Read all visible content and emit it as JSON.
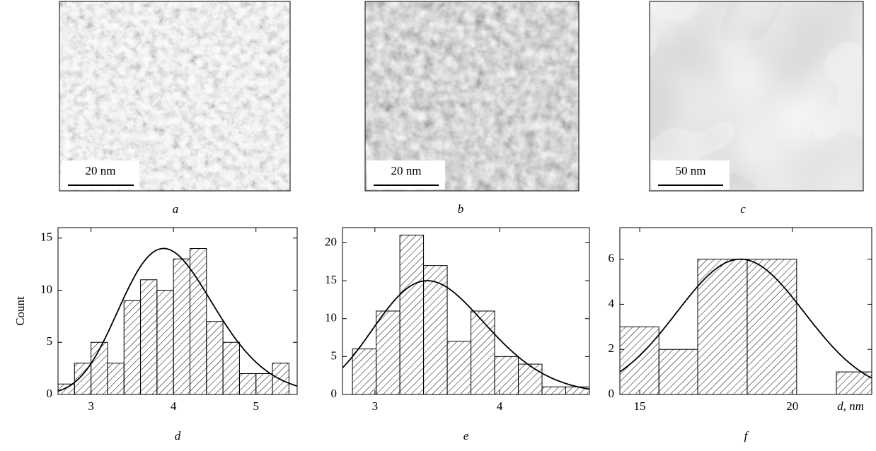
{
  "images": [
    {
      "label": "a",
      "scale_bar": "20 nm"
    },
    {
      "label": "b",
      "scale_bar": "20 nm"
    },
    {
      "label": "c",
      "scale_bar": "50 nm"
    }
  ],
  "chart_data": [
    {
      "type": "histogram",
      "label": "d",
      "ylabel": "Count",
      "color": "#000000",
      "bins": [
        2.6,
        2.8,
        3.0,
        3.2,
        3.4,
        3.6,
        3.8,
        4.0,
        4.2,
        4.4,
        4.6,
        4.8,
        5.0,
        5.2,
        5.4
      ],
      "values": [
        1,
        3,
        5,
        3,
        9,
        11,
        10,
        13,
        14,
        7,
        5,
        2,
        2,
        3
      ],
      "xlim": [
        2.6,
        5.5
      ],
      "xticks": [
        3,
        4,
        5
      ],
      "ylim": [
        0,
        16
      ],
      "yticks": [
        0,
        5,
        10,
        15
      ],
      "fit": {
        "curve": "lognormal",
        "peak": 14,
        "mode": 3.88,
        "width": 0.146
      }
    },
    {
      "type": "histogram",
      "label": "e",
      "color": "#000000",
      "bins": [
        2.82,
        3.01,
        3.2,
        3.39,
        3.58,
        3.77,
        3.96,
        4.15,
        4.34,
        4.53,
        4.72
      ],
      "values": [
        6,
        11,
        21,
        17,
        7,
        11,
        5,
        4,
        1,
        1
      ],
      "xlim": [
        2.74,
        4.72
      ],
      "xticks": [
        3,
        4
      ],
      "ylim": [
        0,
        22
      ],
      "yticks": [
        0,
        5,
        10,
        15,
        20
      ],
      "fit": {
        "curve": "lognormal",
        "peak": 15,
        "mode": 3.42,
        "width": 0.13
      }
    },
    {
      "type": "histogram",
      "label": "f",
      "xlabel": "d, nm",
      "color": "#000000",
      "bins": [
        14.35,
        15.63,
        16.9,
        18.52,
        20.14,
        21.44,
        22.6
      ],
      "values": [
        3,
        2,
        6,
        6,
        0,
        1
      ],
      "xlim": [
        14.35,
        22.6
      ],
      "xticks": [
        15,
        20
      ],
      "ylim": [
        0,
        7.4
      ],
      "yticks": [
        0,
        2,
        4,
        6
      ],
      "fit": {
        "curve": "gauss",
        "peak": 6,
        "mode": 18.3,
        "width": 2.09
      }
    }
  ]
}
